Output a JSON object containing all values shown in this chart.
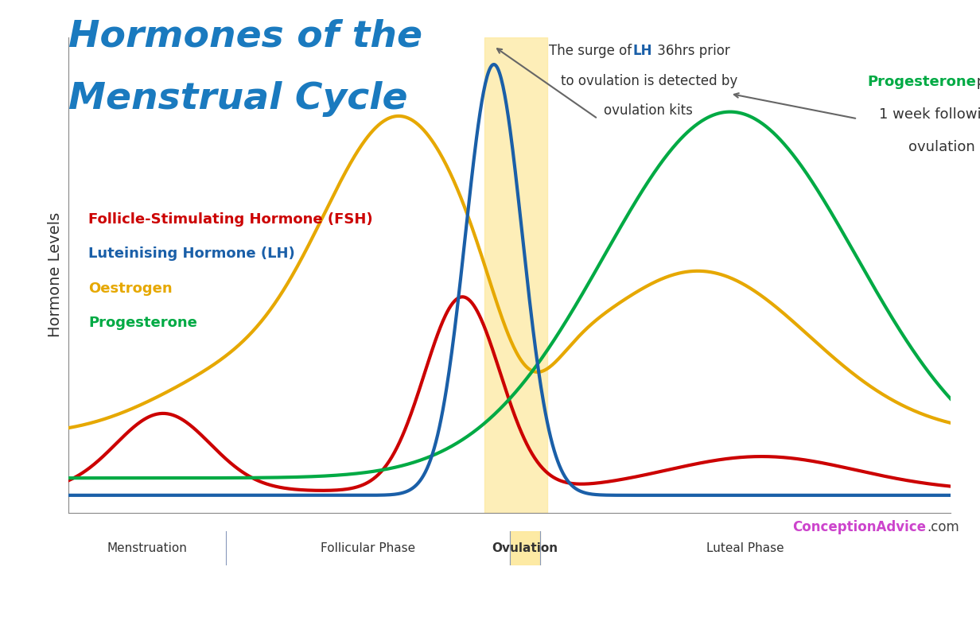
{
  "title_line1": "Hormones of the",
  "title_line2": "Menstrual Cycle",
  "title_color": "#1a7abf",
  "ylabel": "Hormone Levels",
  "background_color": "#ffffff",
  "fsh_color": "#cc0000",
  "lh_color": "#1a5fa8",
  "oestrogen_color": "#e6a800",
  "progesterone_color": "#00aa44",
  "ovulation_band_color": "#fde89a",
  "ovulation_band_alpha": 0.7,
  "phase_bar_color": "#c8d4e8",
  "day_bar_color": "#2e4d8a",
  "website_conception": "ConceptionAdvice",
  "website_com": ".com"
}
